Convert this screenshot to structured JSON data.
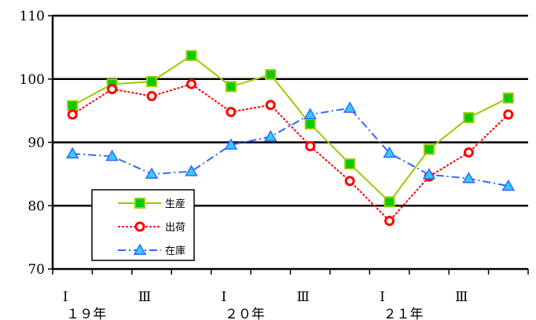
{
  "chart_data": {
    "type": "line",
    "ylim": [
      70,
      110
    ],
    "yticks": [
      70,
      80,
      90,
      100,
      110
    ],
    "grid": "horizontal at 80, 90, 100, 110",
    "legend_placement": "bottom-left",
    "x": [
      1,
      2,
      3,
      4,
      5,
      6,
      7,
      8,
      9,
      10,
      11,
      12
    ],
    "x_tick_labels": [
      {
        "x": 1,
        "label": "Ⅰ"
      },
      {
        "x": 3,
        "label": "Ⅲ"
      },
      {
        "x": 5,
        "label": "Ⅰ"
      },
      {
        "x": 7,
        "label": "Ⅲ"
      },
      {
        "x": 9,
        "label": "Ⅰ"
      },
      {
        "x": 11,
        "label": "Ⅲ"
      }
    ],
    "year_labels": [
      {
        "x": 1,
        "label": "１９年"
      },
      {
        "x": 5,
        "label": "２０年"
      },
      {
        "x": 9,
        "label": "２１年"
      }
    ],
    "series": [
      {
        "name": "生産",
        "color": "#99cc00",
        "marker_color": "#00cc00",
        "marker": "square",
        "dash": "solid",
        "values": [
          95.8,
          99.2,
          99.6,
          103.7,
          98.8,
          100.7,
          92.9,
          86.6,
          80.6,
          88.9,
          93.9,
          97.0
        ]
      },
      {
        "name": "出荷",
        "color": "#ff0000",
        "marker_color": "#ff0000",
        "marker": "circle",
        "dash": "dotted",
        "values": [
          94.4,
          98.4,
          97.3,
          99.2,
          94.8,
          95.9,
          89.4,
          83.9,
          77.6,
          84.6,
          88.4,
          94.4
        ]
      },
      {
        "name": "在庫",
        "color": "#3366ff",
        "marker_color": "#33ccff",
        "marker": "triangle",
        "dash": "dashdot",
        "values": [
          88.2,
          87.8,
          85.0,
          85.4,
          89.6,
          90.9,
          94.4,
          95.4,
          88.3,
          84.9,
          84.3,
          83.1
        ]
      }
    ]
  }
}
